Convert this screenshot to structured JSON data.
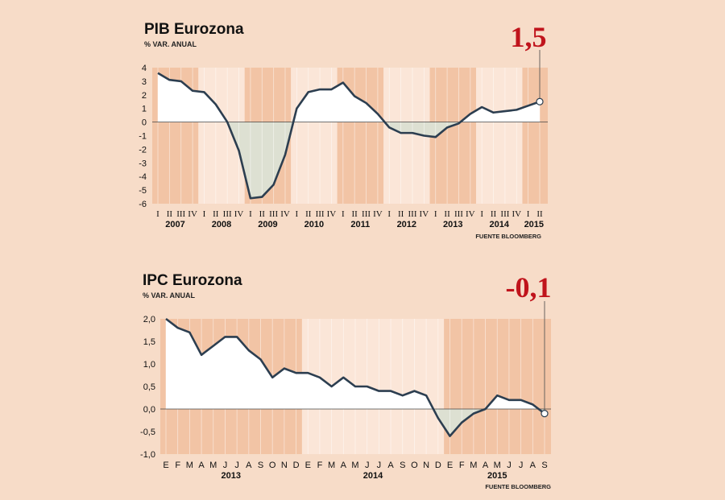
{
  "colors": {
    "background": "#f7dcc8",
    "band_dark": "#f2c4a5",
    "band_light": "#fbe6d8",
    "positive_fill": "#ffffff",
    "negative_fill": "#dde0d2",
    "line": "#2c3e50",
    "callout": "#c0141c"
  },
  "chart_data": [
    {
      "type": "line",
      "title": "PIB Eurozona",
      "subtitle": "% VAR. ANUAL",
      "source": "FUENTE BLOOMBERG",
      "ylim": [
        -6,
        4
      ],
      "yticks": [
        "4",
        "3",
        "2",
        "1",
        "0",
        "-1",
        "-2",
        "-3",
        "-4",
        "-5",
        "-6"
      ],
      "x_ticks": [
        "I",
        "II",
        "III",
        "IV",
        "I",
        "II",
        "III",
        "IV",
        "I",
        "II",
        "III",
        "IV",
        "I",
        "II",
        "III",
        "IV",
        "I",
        "II",
        "III",
        "IV",
        "I",
        "II",
        "III",
        "IV",
        "I",
        "II",
        "III",
        "IV",
        "I",
        "II",
        "III",
        "IV",
        "I",
        "II"
      ],
      "years": [
        {
          "label": "2007",
          "start": 0,
          "count": 4
        },
        {
          "label": "2008",
          "start": 4,
          "count": 4
        },
        {
          "label": "2009",
          "start": 8,
          "count": 4
        },
        {
          "label": "2010",
          "start": 12,
          "count": 4
        },
        {
          "label": "2011",
          "start": 16,
          "count": 4
        },
        {
          "label": "2012",
          "start": 20,
          "count": 4
        },
        {
          "label": "2013",
          "start": 24,
          "count": 4
        },
        {
          "label": "2014",
          "start": 28,
          "count": 4
        },
        {
          "label": "2015",
          "start": 32,
          "count": 2
        }
      ],
      "values": [
        3.6,
        3.1,
        3.0,
        2.3,
        2.2,
        1.3,
        0.0,
        -2.1,
        -5.6,
        -5.5,
        -4.6,
        -2.4,
        1.0,
        2.2,
        2.4,
        2.4,
        2.9,
        1.9,
        1.4,
        0.6,
        -0.4,
        -0.8,
        -0.8,
        -1.0,
        -1.1,
        -0.4,
        -0.1,
        0.6,
        1.1,
        0.7,
        0.8,
        0.9,
        1.2,
        1.5
      ],
      "callout": "1,5"
    },
    {
      "type": "line",
      "title": "IPC Eurozona",
      "subtitle": "% VAR. ANUAL",
      "source": "FUENTE BLOOMBERG",
      "ylim": [
        -1.0,
        2.0
      ],
      "yticks": [
        "2,0",
        "1,5",
        "1,0",
        "0,5",
        "0,0",
        "-0,5",
        "-1,0"
      ],
      "x_ticks": [
        "E",
        "F",
        "M",
        "A",
        "M",
        "J",
        "J",
        "A",
        "S",
        "O",
        "N",
        "D",
        "E",
        "F",
        "M",
        "A",
        "M",
        "J",
        "J",
        "A",
        "S",
        "O",
        "N",
        "D",
        "E",
        "F",
        "M",
        "A",
        "M",
        "J",
        "J",
        "A",
        "S"
      ],
      "years": [
        {
          "label": "2013",
          "start": 0,
          "count": 12
        },
        {
          "label": "2014",
          "start": 12,
          "count": 12
        },
        {
          "label": "2015",
          "start": 24,
          "count": 9
        }
      ],
      "values": [
        2.0,
        1.8,
        1.7,
        1.2,
        1.4,
        1.6,
        1.6,
        1.3,
        1.1,
        0.7,
        0.9,
        0.8,
        0.8,
        0.7,
        0.5,
        0.7,
        0.5,
        0.5,
        0.4,
        0.4,
        0.3,
        0.4,
        0.3,
        -0.2,
        -0.6,
        -0.3,
        -0.1,
        0.0,
        0.3,
        0.2,
        0.2,
        0.1,
        -0.1
      ],
      "callout": "-0,1"
    }
  ]
}
